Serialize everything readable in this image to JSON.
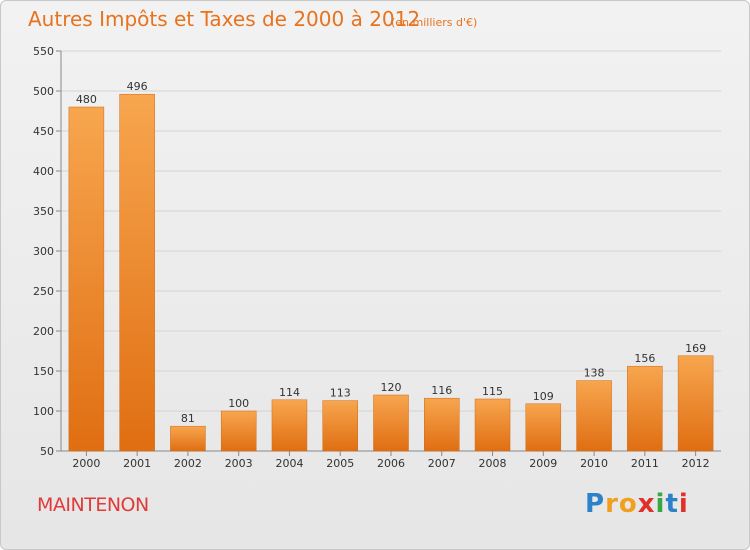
{
  "chart_data": {
    "type": "bar",
    "title": "Autres Impôts et Taxes de 2000 à 2012",
    "subtitle": "(en milliers d'€)",
    "categories": [
      "2000",
      "2001",
      "2002",
      "2003",
      "2004",
      "2005",
      "2006",
      "2007",
      "2008",
      "2009",
      "2010",
      "2011",
      "2012"
    ],
    "values": [
      480,
      496,
      81,
      100,
      114,
      113,
      120,
      116,
      115,
      109,
      138,
      156,
      169
    ],
    "data_labels": [
      "480",
      "496",
      "81",
      "100",
      "114",
      "113",
      "120",
      "116",
      "115",
      "109",
      "138",
      "156",
      "169"
    ],
    "ylim": [
      50,
      550
    ],
    "yticks": [
      50,
      100,
      150,
      200,
      250,
      300,
      350,
      400,
      450,
      500,
      550
    ],
    "grid": true,
    "bar_color": "#f39c3d"
  },
  "commune": "MAINTENON",
  "logo": {
    "name": "Proxiti",
    "letters": [
      "P",
      "r",
      "o",
      "x",
      "i",
      "t",
      "i"
    ]
  }
}
